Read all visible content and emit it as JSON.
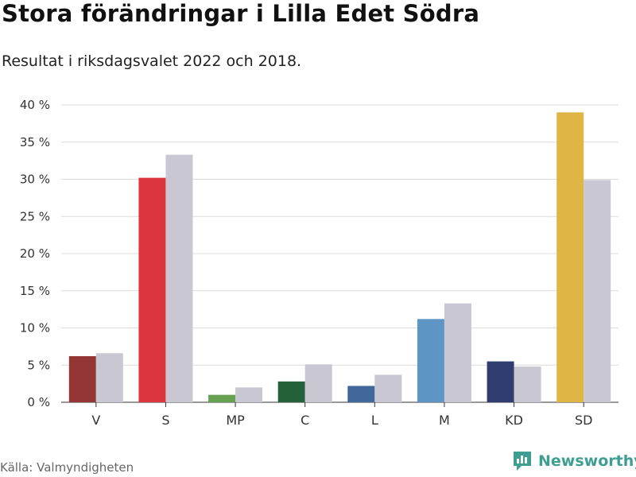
{
  "title": "Stora förändringar i Lilla Edet Södra",
  "subtitle": "Resultat i riksdagsvalet 2022 och 2018.",
  "source": "Källa: Valmyndigheten",
  "brand": "Newsworthy",
  "brand_color": "#3d9e91",
  "chart_data": {
    "type": "bar",
    "categories": [
      "V",
      "S",
      "MP",
      "C",
      "L",
      "M",
      "KD",
      "SD"
    ],
    "series": [
      {
        "values": [
          6.2,
          30.2,
          1.0,
          2.8,
          2.2,
          11.2,
          5.5,
          39.0
        ],
        "colors": [
          "#943634",
          "#dc353d",
          "#68a152",
          "#24613b",
          "#42679a",
          "#5f95c5",
          "#2f3d71",
          "#dfb545"
        ]
      },
      {
        "values": [
          6.6,
          33.3,
          2.0,
          5.1,
          3.7,
          13.3,
          4.8,
          29.9
        ],
        "color": "#c8c7d2"
      }
    ],
    "yticks": [
      "0 %",
      "5 %",
      "10 %",
      "15 %",
      "20 %",
      "25 %",
      "30 %",
      "35 %",
      "40 %"
    ],
    "ylim": [
      0,
      40
    ],
    "grid": true
  }
}
